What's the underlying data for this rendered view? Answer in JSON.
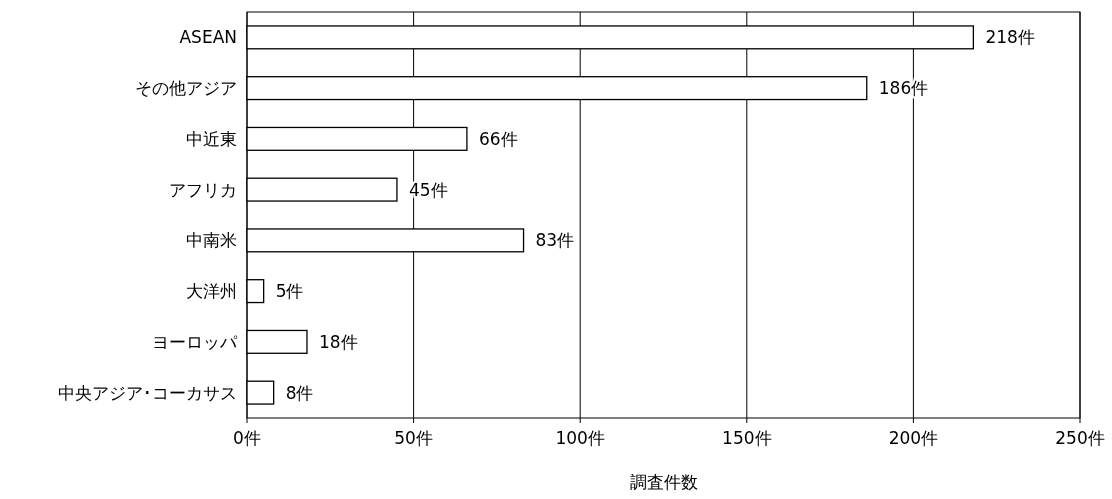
{
  "chart_data": {
    "type": "bar",
    "orientation": "horizontal",
    "xlabel": "調査件数",
    "categories": [
      "ASEAN",
      "その他アジア",
      "中近東",
      "アフリカ",
      "中南米",
      "大洋州",
      "ヨーロッパ",
      "中央アジア･コーカサス"
    ],
    "values": [
      218,
      186,
      66,
      45,
      83,
      5,
      18,
      8
    ],
    "value_labels": [
      "218件",
      "186件",
      "66件",
      "45件",
      "83件",
      "5件",
      "18件",
      "8件"
    ],
    "color": "#ffffff",
    "xlim": [
      0,
      250
    ],
    "xticks": [
      {
        "value": 0,
        "label": "0件"
      },
      {
        "value": 50,
        "label": "50件"
      },
      {
        "value": 100,
        "label": "100件"
      },
      {
        "value": 150,
        "label": "150件"
      },
      {
        "value": 200,
        "label": "200件"
      },
      {
        "value": 250,
        "label": "250件"
      }
    ],
    "grid": "x"
  }
}
